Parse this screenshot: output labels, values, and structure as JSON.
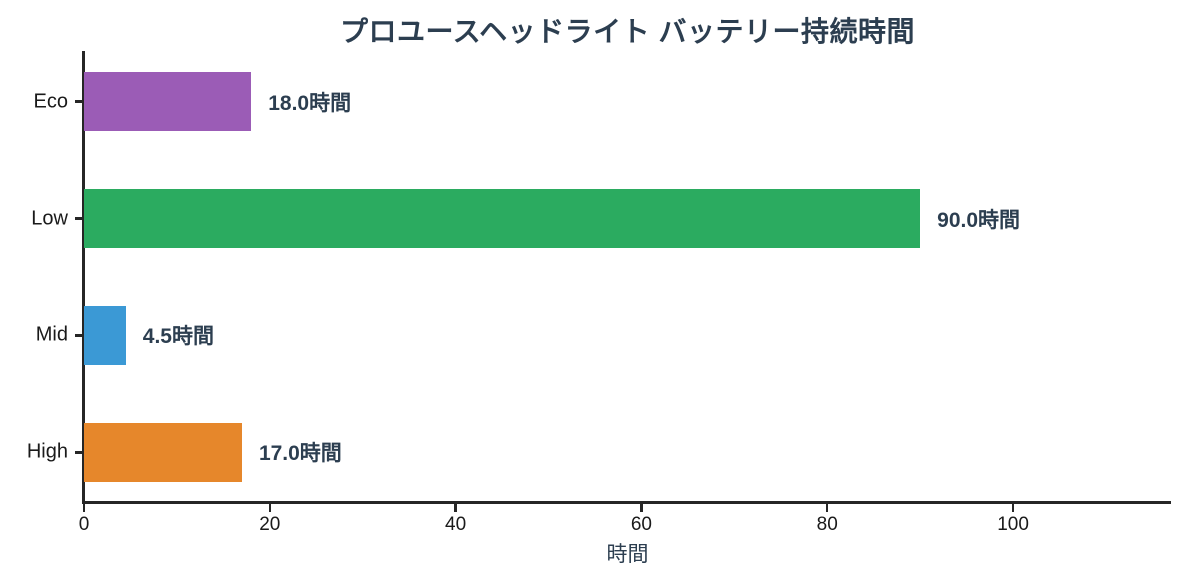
{
  "chart_data": {
    "type": "bar",
    "orientation": "horizontal",
    "title": "プロユースヘッドライト バッテリー持続時間",
    "xlabel": "時間",
    "ylabel": "",
    "categories": [
      "Eco",
      "Low",
      "Mid",
      "High"
    ],
    "values": [
      18.0,
      90.0,
      4.5,
      17.0
    ],
    "value_labels": [
      "18.0時間",
      "90.0時間",
      "4.5時間",
      "17.0時間"
    ],
    "bar_colors": [
      "#9b5cb6",
      "#2bab60",
      "#3b99d5",
      "#e6872b"
    ],
    "xlim": [
      0,
      117
    ],
    "xticks": [
      0,
      20,
      40,
      60,
      80,
      100
    ],
    "grid": false,
    "legend": null,
    "title_color": "#2c3e50",
    "value_label_color": "#2c3e50",
    "axis_label_color": "#2c3e50",
    "axis_color": "#262626"
  }
}
